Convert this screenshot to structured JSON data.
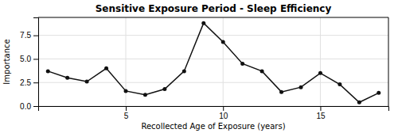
{
  "chart_data": {
    "type": "line",
    "title": "Sensitive Exposure Period - Sleep Efficiency",
    "xlabel": "Recollected Age of Exposure (years)",
    "ylabel": "Importance",
    "x": [
      1,
      2,
      3,
      4,
      5,
      6,
      7,
      8,
      9,
      10,
      11,
      12,
      13,
      14,
      15,
      16,
      17,
      18
    ],
    "values": [
      3.7,
      3.0,
      2.6,
      4.0,
      1.6,
      1.2,
      1.8,
      3.7,
      8.8,
      6.8,
      4.5,
      3.7,
      1.5,
      2.0,
      3.5,
      2.3,
      0.4,
      1.4
    ],
    "color": "#111111",
    "marker": "circle",
    "xlim": [
      0.5,
      18.5
    ],
    "ylim": [
      0.0,
      9.4
    ],
    "xticks": [
      5,
      10,
      15
    ],
    "yticks": [
      {
        "value": 0.0,
        "label": "0.0"
      },
      2.5,
      {
        "value": 5.0,
        "label": "5.0"
      },
      7.5
    ],
    "grid": true
  }
}
